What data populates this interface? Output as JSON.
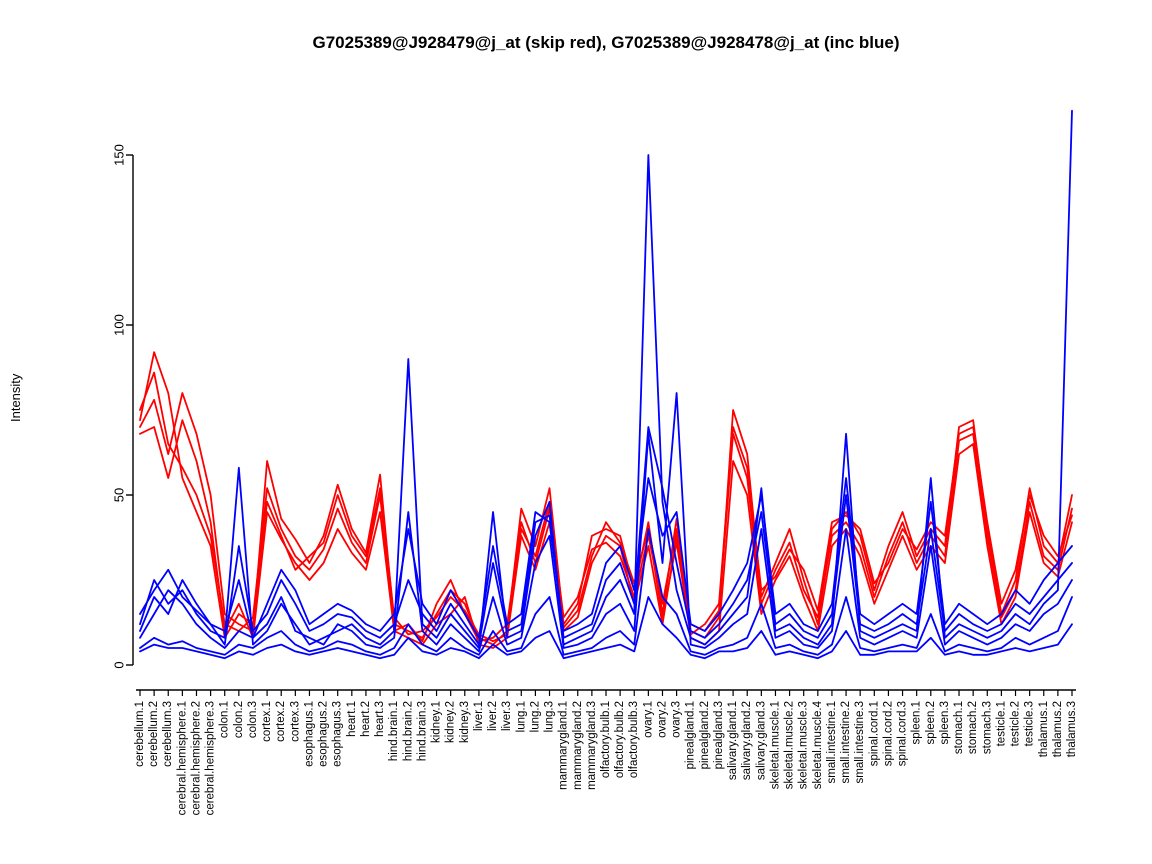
{
  "chart_data": {
    "type": "line",
    "title": "G7025389@J928479@j_at (skip red), G7025389@J928478@j_at (inc blue)",
    "xlabel": "",
    "ylabel": "Intensity",
    "ylim": [
      0,
      163
    ],
    "yticks": [
      0,
      50,
      100,
      150
    ],
    "grid": false,
    "legend_position": "none",
    "legend": {
      "red": "G7025389@J928479@j_at (skip)",
      "blue": "G7025389@J928478@j_at (inc)"
    },
    "colors": {
      "red": "#FF0000",
      "blue": "#0000FF"
    },
    "categories": [
      "cerebellum.1",
      "cerebellum.2",
      "cerebellum.3",
      "cerebral.hemisphere.1",
      "cerebral.hemisphere.2",
      "cerebral.hemisphere.3",
      "colon.1",
      "colon.2",
      "colon.3",
      "cortex.1",
      "cortex.2",
      "cortex.3",
      "esophagus.1",
      "esophagus.2",
      "esophagus.3",
      "heart.1",
      "heart.2",
      "heart.3",
      "hind.brain.1",
      "hind.brain.2",
      "hind.brain.3",
      "kidney.1",
      "kidney.2",
      "kidney.3",
      "liver.1",
      "liver.2",
      "liver.3",
      "lung.1",
      "lung.2",
      "lung.3",
      "mammarygland.1",
      "mammarygland.2",
      "mammarygland.3",
      "olfactory.bulb.1",
      "olfactory.bulb.2",
      "olfactory.bulb.3",
      "ovary.1",
      "ovary.2",
      "ovary.3",
      "pinealgland.1",
      "pinealgland.2",
      "pinealgland.3",
      "salivary.gland.1",
      "salivary.gland.2",
      "salivary.gland.3",
      "skeletal.muscle.1",
      "skeletal.muscle.2",
      "skeletal.muscle.3",
      "skeletal.muscle.4",
      "small.intestine.1",
      "small.intestine.2",
      "small.intestine.3",
      "spinal.cord.1",
      "spinal.cord.2",
      "spinal.cord.3",
      "spleen.1",
      "spleen.2",
      "spleen.3",
      "stomach.1",
      "stomach.2",
      "stomach.3",
      "testicle.1",
      "testicle.2",
      "testicle.3",
      "thalamus.1",
      "thalamus.2",
      "thalamus.3"
    ],
    "series": [
      {
        "name": "skip-red-1",
        "group": "red",
        "color": "#FF0000",
        "values": [
          70,
          78,
          62,
          80,
          68,
          50,
          15,
          12,
          10,
          60,
          43,
          37,
          30,
          38,
          53,
          40,
          33,
          56,
          12,
          10,
          8,
          15,
          22,
          18,
          8,
          6,
          10,
          46,
          35,
          52,
          12,
          18,
          38,
          40,
          38,
          22,
          42,
          15,
          43,
          10,
          8,
          14,
          75,
          62,
          20,
          30,
          40,
          25,
          12,
          40,
          45,
          38,
          22,
          35,
          45,
          32,
          40,
          35,
          70,
          72,
          40,
          15,
          25,
          52,
          35,
          30,
          50
        ]
      },
      {
        "name": "skip-red-2",
        "group": "red",
        "color": "#FF0000",
        "values": [
          68,
          70,
          55,
          72,
          60,
          42,
          10,
          18,
          8,
          45,
          37,
          30,
          25,
          30,
          40,
          33,
          28,
          45,
          10,
          8,
          6,
          12,
          15,
          20,
          6,
          5,
          8,
          38,
          28,
          42,
          10,
          14,
          30,
          38,
          35,
          18,
          35,
          12,
          38,
          8,
          6,
          10,
          60,
          50,
          15,
          25,
          32,
          20,
          10,
          35,
          40,
          32,
          18,
          28,
          38,
          28,
          35,
          30,
          62,
          65,
          35,
          12,
          20,
          45,
          30,
          26,
          42
        ]
      },
      {
        "name": "skip-red-3",
        "group": "red",
        "color": "#FF0000",
        "values": [
          75,
          86,
          65,
          58,
          50,
          38,
          12,
          10,
          14,
          52,
          40,
          32,
          28,
          34,
          46,
          36,
          30,
          50,
          10,
          12,
          7,
          18,
          25,
          15,
          7,
          8,
          12,
          42,
          30,
          46,
          14,
          20,
          34,
          36,
          32,
          20,
          38,
          18,
          40,
          12,
          10,
          16,
          68,
          55,
          18,
          28,
          36,
          22,
          14,
          38,
          42,
          35,
          20,
          32,
          42,
          30,
          38,
          32,
          66,
          68,
          38,
          14,
          22,
          48,
          32,
          28,
          46
        ]
      },
      {
        "name": "skip-red-4",
        "group": "red",
        "color": "#FF0000",
        "values": [
          72,
          92,
          80,
          55,
          45,
          35,
          8,
          15,
          12,
          48,
          38,
          28,
          32,
          36,
          50,
          38,
          32,
          52,
          14,
          9,
          10,
          14,
          20,
          16,
          9,
          7,
          9,
          40,
          32,
          48,
          11,
          16,
          32,
          42,
          36,
          24,
          40,
          14,
          36,
          9,
          12,
          18,
          70,
          58,
          22,
          26,
          34,
          28,
          16,
          42,
          44,
          40,
          24,
          30,
          40,
          34,
          42,
          38,
          68,
          70,
          42,
          18,
          28,
          50,
          38,
          32,
          44
        ]
      },
      {
        "name": "inc-blue-1",
        "group": "blue",
        "color": "#0000FF",
        "values": [
          12,
          25,
          18,
          22,
          15,
          10,
          8,
          58,
          6,
          10,
          18,
          12,
          6,
          8,
          10,
          12,
          8,
          6,
          10,
          90,
          12,
          8,
          15,
          10,
          5,
          45,
          8,
          10,
          38,
          48,
          6,
          8,
          10,
          20,
          25,
          15,
          150,
          48,
          22,
          8,
          6,
          10,
          15,
          20,
          52,
          10,
          12,
          8,
          6,
          12,
          68,
          10,
          8,
          10,
          12,
          10,
          55,
          8,
          12,
          10,
          8,
          10,
          15,
          12,
          18,
          22,
          163
        ]
      },
      {
        "name": "inc-blue-2",
        "group": "blue",
        "color": "#0000FF",
        "values": [
          8,
          15,
          22,
          18,
          12,
          8,
          5,
          10,
          8,
          12,
          20,
          10,
          8,
          6,
          12,
          10,
          6,
          5,
          8,
          45,
          10,
          6,
          12,
          8,
          4,
          20,
          6,
          8,
          30,
          38,
          5,
          6,
          8,
          15,
          18,
          10,
          68,
          30,
          80,
          6,
          5,
          8,
          12,
          15,
          40,
          8,
          10,
          6,
          5,
          10,
          40,
          8,
          6,
          8,
          10,
          8,
          35,
          6,
          10,
          8,
          6,
          8,
          12,
          10,
          15,
          18,
          25
        ]
      },
      {
        "name": "inc-blue-3",
        "group": "blue",
        "color": "#0000FF",
        "values": [
          10,
          20,
          15,
          25,
          18,
          12,
          6,
          35,
          10,
          15,
          25,
          18,
          10,
          12,
          15,
          14,
          10,
          8,
          12,
          25,
          15,
          10,
          18,
          12,
          6,
          30,
          10,
          12,
          42,
          44,
          8,
          10,
          12,
          25,
          30,
          18,
          70,
          52,
          30,
          10,
          8,
          12,
          18,
          25,
          45,
          12,
          15,
          10,
          8,
          15,
          50,
          12,
          10,
          12,
          15,
          12,
          40,
          10,
          15,
          12,
          10,
          12,
          18,
          15,
          20,
          25,
          30
        ]
      },
      {
        "name": "inc-blue-4",
        "group": "blue",
        "color": "#0000FF",
        "values": [
          5,
          8,
          6,
          7,
          5,
          4,
          3,
          6,
          5,
          8,
          10,
          6,
          4,
          5,
          7,
          6,
          4,
          3,
          5,
          12,
          6,
          4,
          8,
          5,
          3,
          10,
          4,
          5,
          15,
          20,
          3,
          4,
          5,
          8,
          10,
          6,
          40,
          20,
          15,
          4,
          3,
          5,
          6,
          8,
          18,
          5,
          6,
          4,
          3,
          6,
          20,
          5,
          4,
          5,
          6,
          5,
          15,
          4,
          6,
          5,
          4,
          5,
          8,
          6,
          8,
          10,
          20
        ]
      },
      {
        "name": "inc-blue-5",
        "group": "blue",
        "color": "#0000FF",
        "values": [
          4,
          6,
          5,
          5,
          4,
          3,
          2,
          4,
          3,
          5,
          6,
          4,
          3,
          4,
          5,
          4,
          3,
          2,
          3,
          8,
          4,
          3,
          5,
          4,
          2,
          6,
          3,
          4,
          8,
          10,
          2,
          3,
          4,
          5,
          6,
          4,
          20,
          12,
          8,
          3,
          2,
          4,
          4,
          5,
          10,
          3,
          4,
          3,
          2,
          4,
          10,
          3,
          3,
          4,
          4,
          4,
          8,
          3,
          4,
          3,
          3,
          4,
          5,
          4,
          5,
          6,
          12
        ]
      },
      {
        "name": "inc-blue-6",
        "group": "blue",
        "color": "#0000FF",
        "values": [
          15,
          22,
          28,
          20,
          16,
          12,
          10,
          25,
          8,
          18,
          28,
          22,
          12,
          15,
          18,
          16,
          12,
          10,
          15,
          40,
          18,
          12,
          22,
          15,
          8,
          35,
          12,
          15,
          45,
          42,
          10,
          12,
          15,
          30,
          35,
          22,
          55,
          38,
          45,
          12,
          10,
          15,
          22,
          30,
          50,
          15,
          18,
          12,
          10,
          18,
          55,
          15,
          12,
          15,
          18,
          15,
          48,
          12,
          18,
          15,
          12,
          15,
          22,
          18,
          25,
          30,
          35
        ]
      }
    ]
  }
}
